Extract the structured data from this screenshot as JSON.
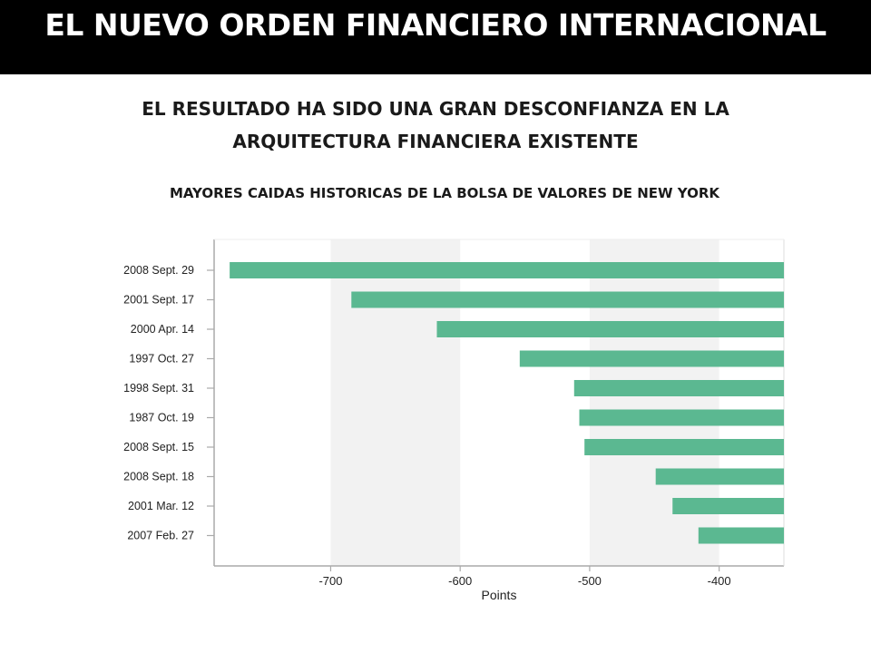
{
  "header": {
    "title": "EL NUEVO ORDEN FINANCIERO INTERNACIONAL",
    "subtitle_line1": "EL RESULTADO HA SIDO UNA GRAN DESCONFIANZA EN LA",
    "subtitle_line2": "ARQUITECTURA FINANCIERA EXISTENTE",
    "caption": "MAYORES CAIDAS HISTORICAS DE LA BOLSA DE VALORES DE NEW YORK"
  },
  "colors": {
    "bar": "#5bb891",
    "band": "#f2f2f2",
    "axis": "#aaaaaa",
    "label_text": "#222222"
  },
  "chart_data": {
    "type": "bar",
    "orientation": "horizontal",
    "title": "",
    "xlabel": "Points",
    "ylabel": "",
    "categories": [
      "2008 Sept. 29",
      "2001 Sept. 17",
      "2000 Apr. 14",
      "1997 Oct. 27",
      "1998 Sept. 31",
      "1987 Oct. 19",
      "2008 Sept. 15",
      "2008 Sept. 18",
      "2001 Mar. 12",
      "2007 Feb. 27"
    ],
    "values": [
      -778,
      -684,
      -618,
      -554,
      -512,
      -508,
      -504,
      -449,
      -436,
      -416
    ],
    "xlim": [
      -790,
      -350
    ],
    "xticks": [
      -700,
      -600,
      -500,
      -400
    ],
    "xtick_labels": [
      "-700",
      "-600",
      "-500",
      "-400"
    ],
    "grid": "alternating vertical bands"
  }
}
